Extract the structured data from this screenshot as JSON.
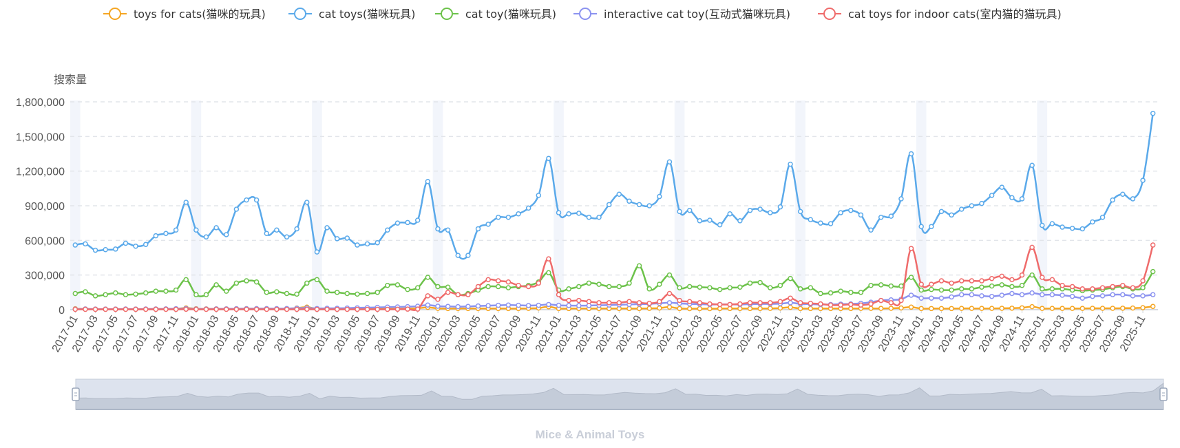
{
  "chart_data": {
    "type": "line",
    "title": "",
    "subtitle": "Mice & Animal Toys",
    "ylabel": "搜索量",
    "xlabel": "",
    "ylim": [
      0,
      1800000
    ],
    "yticks": [
      0,
      300000,
      600000,
      900000,
      1200000,
      1500000,
      1800000
    ],
    "ytick_labels": [
      "0",
      "300,000",
      "600,000",
      "900,000",
      "1,200,000",
      "1,500,000",
      "1,800,000"
    ],
    "xtick_labels": [
      "2017-01",
      "2017-03",
      "2017-05",
      "2017-07",
      "2017-09",
      "2017-11",
      "2018-01",
      "2018-03",
      "2018-05",
      "2018-07",
      "2018-09",
      "2018-11",
      "2019-01",
      "2019-03",
      "2019-05",
      "2019-07",
      "2019-09",
      "2019-11",
      "2020-01",
      "2020-03",
      "2020-05",
      "2020-07",
      "2020-09",
      "2020-11",
      "2021-01",
      "2021-03",
      "2021-05",
      "2021-07",
      "2021-09",
      "2021-11",
      "2022-01",
      "2022-03",
      "2022-05",
      "2022-07",
      "2022-09",
      "2022-11",
      "2023-01",
      "2023-03",
      "2023-05",
      "2023-07",
      "2023-09",
      "2023-11",
      "2024-01",
      "2024-03",
      "2024-05",
      "2024-07",
      "2024-09",
      "2024-11",
      "2025-01",
      "2025-03",
      "2025-05",
      "2025-07",
      "2025-09",
      "2025-11"
    ],
    "start": "2017-01",
    "months": 108,
    "grid": true,
    "legend_position": "top-center",
    "series": [
      {
        "name": "toys for cats(猫咪的玩具)",
        "color": "#f5a623",
        "values": [
          8000,
          6000,
          5000,
          5000,
          5000,
          5000,
          5000,
          5000,
          6000,
          6000,
          7000,
          15000,
          8000,
          7000,
          7000,
          7000,
          8000,
          9000,
          9000,
          9000,
          8000,
          9000,
          14000,
          22000,
          8000,
          7000,
          7000,
          7000,
          7000,
          8000,
          8000,
          8000,
          8000,
          9000,
          12000,
          20000,
          11000,
          10000,
          10000,
          10000,
          10000,
          10000,
          10000,
          10000,
          10000,
          11000,
          14000,
          25000,
          10000,
          10000,
          10000,
          10000,
          10000,
          10000,
          10000,
          10000,
          10000,
          11000,
          14000,
          22000,
          10000,
          9000,
          9000,
          9000,
          10000,
          10000,
          10000,
          10000,
          10000,
          11000,
          14000,
          20000,
          10000,
          10000,
          10000,
          10000,
          10000,
          10000,
          11000,
          11000,
          11000,
          12000,
          15000,
          22000,
          10000,
          10000,
          10000,
          10000,
          11000,
          11000,
          11000,
          11000,
          12000,
          13000,
          16000,
          26000,
          11000,
          11000,
          11000,
          11000,
          11000,
          12000,
          12000,
          12000,
          13000,
          14000,
          17000,
          28000
        ]
      },
      {
        "name": "cat toys(猫咪玩具)",
        "color": "#5aa9ea",
        "values": [
          560000,
          570000,
          515000,
          520000,
          525000,
          575000,
          550000,
          565000,
          640000,
          660000,
          690000,
          930000,
          690000,
          630000,
          710000,
          650000,
          870000,
          950000,
          950000,
          660000,
          690000,
          630000,
          700000,
          930000,
          500000,
          710000,
          615000,
          620000,
          560000,
          570000,
          580000,
          690000,
          750000,
          755000,
          775000,
          1110000,
          700000,
          690000,
          470000,
          470000,
          700000,
          740000,
          800000,
          800000,
          830000,
          880000,
          990000,
          1310000,
          840000,
          830000,
          835000,
          800000,
          800000,
          910000,
          1000000,
          940000,
          910000,
          900000,
          980000,
          1280000,
          850000,
          860000,
          770000,
          775000,
          735000,
          830000,
          770000,
          860000,
          870000,
          840000,
          890000,
          1260000,
          850000,
          780000,
          750000,
          745000,
          840000,
          860000,
          820000,
          690000,
          800000,
          810000,
          960000,
          1350000,
          720000,
          720000,
          850000,
          820000,
          870000,
          900000,
          920000,
          990000,
          1060000,
          970000,
          960000,
          1250000,
          730000,
          745000,
          715000,
          705000,
          700000,
          760000,
          800000,
          950000,
          1000000,
          960000,
          1120000,
          1700000
        ]
      },
      {
        "name": "cat toy(猫咪玩具)",
        "color": "#6cc24a",
        "values": [
          140000,
          155000,
          120000,
          130000,
          145000,
          130000,
          135000,
          145000,
          160000,
          160000,
          170000,
          260000,
          130000,
          130000,
          215000,
          160000,
          230000,
          250000,
          240000,
          150000,
          155000,
          140000,
          135000,
          230000,
          260000,
          160000,
          150000,
          140000,
          135000,
          140000,
          150000,
          210000,
          215000,
          175000,
          190000,
          280000,
          200000,
          195000,
          130000,
          140000,
          170000,
          200000,
          200000,
          190000,
          200000,
          210000,
          240000,
          320000,
          170000,
          180000,
          200000,
          230000,
          220000,
          200000,
          200000,
          230000,
          380000,
          180000,
          220000,
          300000,
          190000,
          200000,
          195000,
          190000,
          175000,
          190000,
          195000,
          230000,
          235000,
          190000,
          210000,
          270000,
          180000,
          190000,
          140000,
          145000,
          160000,
          150000,
          150000,
          210000,
          215000,
          205000,
          205000,
          280000,
          170000,
          175000,
          170000,
          170000,
          180000,
          180000,
          195000,
          205000,
          215000,
          200000,
          210000,
          300000,
          180000,
          180000,
          180000,
          170000,
          165000,
          170000,
          175000,
          190000,
          200000,
          180000,
          190000,
          330000
        ]
      },
      {
        "name": "interactive cat toy(互动式猫咪玩具)",
        "color": "#8b93f0",
        "values": [
          5000,
          6000,
          5000,
          5000,
          5000,
          6000,
          5000,
          6000,
          6000,
          7000,
          8000,
          10000,
          6000,
          6000,
          7000,
          7000,
          8000,
          8000,
          9000,
          9000,
          9000,
          10000,
          12000,
          15000,
          10000,
          12000,
          12000,
          14000,
          16000,
          18000,
          20000,
          22000,
          24000,
          26000,
          30000,
          40000,
          30000,
          28000,
          26000,
          28000,
          32000,
          35000,
          38000,
          40000,
          38000,
          36000,
          38000,
          45000,
          38000,
          36000,
          35000,
          36000,
          38000,
          40000,
          42000,
          45000,
          48000,
          50000,
          55000,
          60000,
          55000,
          50000,
          48000,
          45000,
          45000,
          45000,
          45000,
          48000,
          50000,
          50000,
          52000,
          60000,
          50000,
          48000,
          45000,
          45000,
          48000,
          50000,
          55000,
          65000,
          80000,
          85000,
          90000,
          125000,
          100000,
          100000,
          100000,
          110000,
          130000,
          130000,
          120000,
          115000,
          125000,
          140000,
          130000,
          145000,
          130000,
          130000,
          125000,
          115000,
          100000,
          115000,
          120000,
          130000,
          130000,
          120000,
          120000,
          130000
        ]
      },
      {
        "name": "cat toys for indoor cats(室内猫的猫玩具)",
        "color": "#ef6b6b",
        "values": [
          3000,
          3000,
          3000,
          3000,
          3000,
          3000,
          3000,
          3000,
          3000,
          3000,
          3000,
          4000,
          3000,
          3000,
          3000,
          3000,
          3000,
          3000,
          3000,
          3000,
          3000,
          3000,
          3000,
          4000,
          3000,
          3000,
          3000,
          3000,
          3000,
          3000,
          3000,
          3000,
          4000,
          5000,
          5000,
          120000,
          90000,
          150000,
          130000,
          130000,
          200000,
          260000,
          250000,
          240000,
          210000,
          200000,
          230000,
          440000,
          130000,
          80000,
          80000,
          70000,
          60000,
          60000,
          60000,
          70000,
          60000,
          55000,
          70000,
          140000,
          80000,
          70000,
          60000,
          50000,
          45000,
          45000,
          50000,
          60000,
          60000,
          60000,
          70000,
          100000,
          60000,
          55000,
          50000,
          40000,
          40000,
          45000,
          40000,
          50000,
          80000,
          60000,
          80000,
          530000,
          220000,
          220000,
          250000,
          230000,
          250000,
          250000,
          250000,
          270000,
          290000,
          260000,
          300000,
          540000,
          280000,
          260000,
          210000,
          200000,
          180000,
          180000,
          190000,
          200000,
          210000,
          190000,
          250000,
          560000
        ]
      }
    ]
  }
}
